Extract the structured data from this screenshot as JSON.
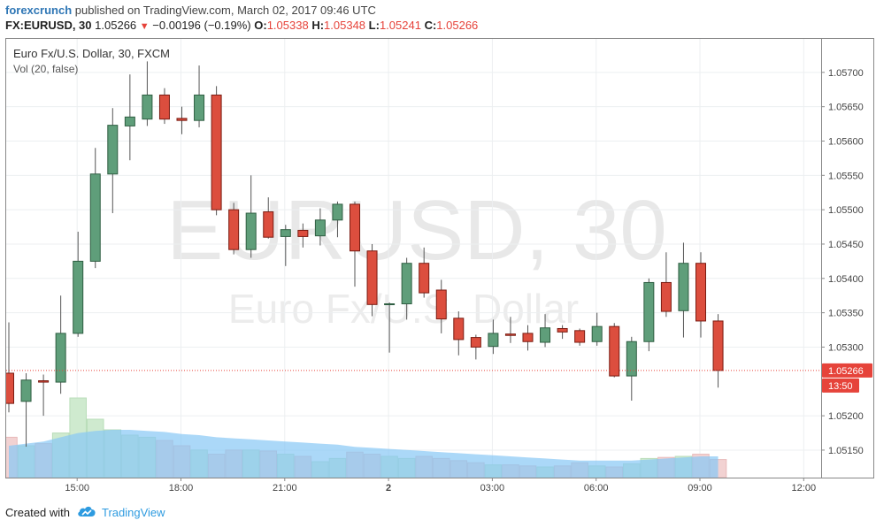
{
  "header": {
    "author": "forexcrunch",
    "published_text": "published on TradingView.com, March 02, 2017 09:46 UTC",
    "symbol": "FX:EURUSD, 30",
    "last": "1.05266",
    "change": "−0.00196 (−0.19%)",
    "o_label": "O:",
    "o_value": "1.05338",
    "h_label": "H:",
    "h_value": "1.05348",
    "l_label": "L:",
    "l_value": "1.05241",
    "c_label": "C:",
    "c_value": "1.05266"
  },
  "chart": {
    "legend_title": "Euro Fx/U.S. Dollar, 30, FXCM",
    "legend_indicator": "Vol (20, false)",
    "watermark_main": "EURUSD, 30",
    "watermark_sub": "Euro Fx/U.S. Dollar",
    "price_tag": "1.05266",
    "time_tag": "13:50"
  },
  "chart_data": {
    "type": "candlestick",
    "ylim": [
      1.0511,
      1.0575
    ],
    "y_ticks": [
      "1.05700",
      "1.05650",
      "1.05600",
      "1.05550",
      "1.05500",
      "1.05450",
      "1.05400",
      "1.05350",
      "1.05300",
      "1.05200",
      "1.05150"
    ],
    "x_ticks": [
      {
        "label": "15:00",
        "bar": 4
      },
      {
        "label": "18:00",
        "bar": 10
      },
      {
        "label": "21:00",
        "bar": 16
      },
      {
        "label": "2",
        "bar": 22
      },
      {
        "label": "03:00",
        "bar": 28
      },
      {
        "label": "06:00",
        "bar": 34
      },
      {
        "label": "09:00",
        "bar": 40
      },
      {
        "label": "12:00",
        "bar": 46
      }
    ],
    "candles": [
      {
        "o": 1.05262,
        "h": 1.05336,
        "l": 1.05205,
        "c": 1.05218
      },
      {
        "o": 1.05221,
        "h": 1.05262,
        "l": 1.05155,
        "c": 1.05252
      },
      {
        "o": 1.05251,
        "h": 1.0526,
        "l": 1.052,
        "c": 1.05249
      },
      {
        "o": 1.05249,
        "h": 1.05375,
        "l": 1.05232,
        "c": 1.0532
      },
      {
        "o": 1.0532,
        "h": 1.05468,
        "l": 1.05315,
        "c": 1.05425
      },
      {
        "o": 1.05425,
        "h": 1.0559,
        "l": 1.05415,
        "c": 1.05552
      },
      {
        "o": 1.05552,
        "h": 1.05648,
        "l": 1.05495,
        "c": 1.05623
      },
      {
        "o": 1.05622,
        "h": 1.05697,
        "l": 1.05572,
        "c": 1.05635
      },
      {
        "o": 1.05632,
        "h": 1.05716,
        "l": 1.05622,
        "c": 1.05667
      },
      {
        "o": 1.05667,
        "h": 1.05677,
        "l": 1.05625,
        "c": 1.05632
      },
      {
        "o": 1.05633,
        "h": 1.0565,
        "l": 1.0561,
        "c": 1.0563
      },
      {
        "o": 1.0563,
        "h": 1.0571,
        "l": 1.0562,
        "c": 1.05667
      },
      {
        "o": 1.05667,
        "h": 1.0568,
        "l": 1.05492,
        "c": 1.055
      },
      {
        "o": 1.055,
        "h": 1.0551,
        "l": 1.05435,
        "c": 1.05442
      },
      {
        "o": 1.05442,
        "h": 1.0555,
        "l": 1.0543,
        "c": 1.05495
      },
      {
        "o": 1.05497,
        "h": 1.05518,
        "l": 1.05458,
        "c": 1.0546
      },
      {
        "o": 1.05461,
        "h": 1.05478,
        "l": 1.05418,
        "c": 1.05471
      },
      {
        "o": 1.0547,
        "h": 1.0548,
        "l": 1.05445,
        "c": 1.05461
      },
      {
        "o": 1.05462,
        "h": 1.05502,
        "l": 1.05448,
        "c": 1.05485
      },
      {
        "o": 1.05485,
        "h": 1.05512,
        "l": 1.0546,
        "c": 1.05508
      },
      {
        "o": 1.05508,
        "h": 1.05512,
        "l": 1.05388,
        "c": 1.0544
      },
      {
        "o": 1.0544,
        "h": 1.0545,
        "l": 1.05345,
        "c": 1.05362
      },
      {
        "o": 1.05362,
        "h": 1.05365,
        "l": 1.05292,
        "c": 1.05363
      },
      {
        "o": 1.05363,
        "h": 1.0543,
        "l": 1.0534,
        "c": 1.05422
      },
      {
        "o": 1.05422,
        "h": 1.05445,
        "l": 1.05372,
        "c": 1.05379
      },
      {
        "o": 1.05383,
        "h": 1.05398,
        "l": 1.0532,
        "c": 1.05341
      },
      {
        "o": 1.05342,
        "h": 1.05352,
        "l": 1.05288,
        "c": 1.05311
      },
      {
        "o": 1.05314,
        "h": 1.05318,
        "l": 1.05282,
        "c": 1.053
      },
      {
        "o": 1.05301,
        "h": 1.0534,
        "l": 1.0529,
        "c": 1.0532
      },
      {
        "o": 1.05319,
        "h": 1.05344,
        "l": 1.05306,
        "c": 1.05317
      },
      {
        "o": 1.0532,
        "h": 1.05332,
        "l": 1.05295,
        "c": 1.05308
      },
      {
        "o": 1.05307,
        "h": 1.05348,
        "l": 1.053,
        "c": 1.05328
      },
      {
        "o": 1.05327,
        "h": 1.05332,
        "l": 1.05312,
        "c": 1.05322
      },
      {
        "o": 1.05324,
        "h": 1.05327,
        "l": 1.05302,
        "c": 1.05307
      },
      {
        "o": 1.05308,
        "h": 1.0535,
        "l": 1.05302,
        "c": 1.0533
      },
      {
        "o": 1.0533,
        "h": 1.05335,
        "l": 1.05256,
        "c": 1.05258
      },
      {
        "o": 1.05258,
        "h": 1.05315,
        "l": 1.05222,
        "c": 1.05308
      },
      {
        "o": 1.05308,
        "h": 1.054,
        "l": 1.05294,
        "c": 1.05394
      },
      {
        "o": 1.05394,
        "h": 1.05438,
        "l": 1.05344,
        "c": 1.05352
      },
      {
        "o": 1.05353,
        "h": 1.05452,
        "l": 1.05314,
        "c": 1.05422
      },
      {
        "o": 1.05422,
        "h": 1.05438,
        "l": 1.05314,
        "c": 1.05338
      },
      {
        "o": 1.05338,
        "h": 1.05348,
        "l": 1.05241,
        "c": 1.05266
      }
    ],
    "volume": [
      38,
      30,
      32,
      42,
      75,
      55,
      45,
      40,
      38,
      35,
      30,
      26,
      22,
      26,
      26,
      25,
      22,
      20,
      15,
      18,
      24,
      22,
      20,
      18,
      20,
      18,
      16,
      14,
      12,
      12,
      11,
      10,
      11,
      14,
      11,
      10,
      13,
      18,
      19,
      20,
      22,
      17
    ],
    "volume_ma": [
      30,
      32,
      34,
      38,
      42,
      44,
      45,
      45,
      44,
      43,
      41,
      40,
      38,
      37,
      36,
      35,
      34,
      33,
      32,
      31,
      29,
      28,
      27,
      26,
      25,
      24,
      23,
      22,
      21,
      20,
      19,
      18,
      17,
      16,
      16,
      16,
      16,
      17,
      18,
      19,
      20,
      20
    ],
    "colors": {
      "up": "#5f9e7a",
      "up_border": "#2f5e42",
      "down": "#dc4e3e",
      "down_border": "#7a1c12",
      "vol_up": "#cfeacf",
      "vol_down": "#f2d2d2",
      "ma_fill": "#88c8f5",
      "last_price": "#e6433a",
      "watermark": "#e6e6e6"
    }
  },
  "footer": {
    "created_with": "Created with",
    "brand": "TradingView"
  }
}
